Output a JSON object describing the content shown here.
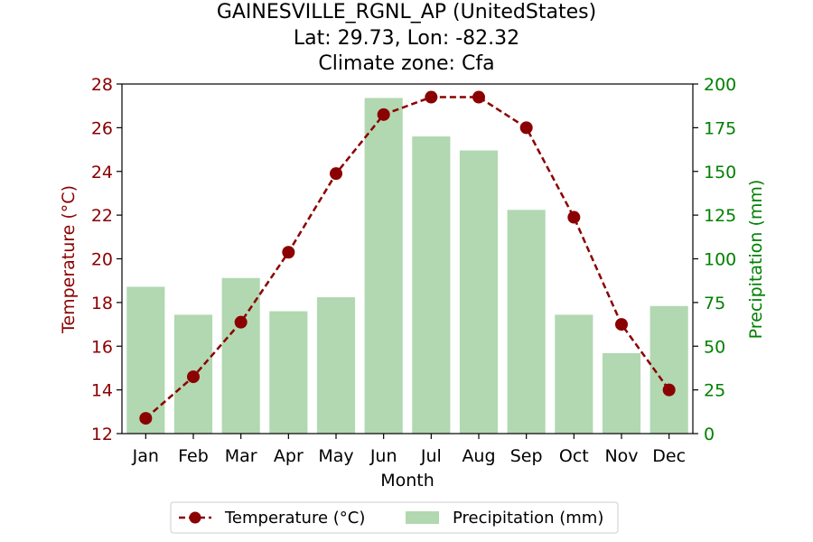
{
  "chart_data": {
    "type": "bar",
    "title_lines": [
      "GAINESVILLE_RGNL_AP (UnitedStates)",
      "Lat: 29.73, Lon: -82.32",
      "Climate zone: Cfa"
    ],
    "xlabel": "Month",
    "ylabel_left": "Temperature (°C)",
    "ylabel_right": "Precipitation (mm)",
    "categories": [
      "Jan",
      "Feb",
      "Mar",
      "Apr",
      "May",
      "Jun",
      "Jul",
      "Aug",
      "Sep",
      "Oct",
      "Nov",
      "Dec"
    ],
    "series": [
      {
        "name": "Temperature (°C)",
        "type": "line",
        "axis": "left",
        "values": [
          12.7,
          14.6,
          17.1,
          20.3,
          23.9,
          26.6,
          27.4,
          27.4,
          26.0,
          21.9,
          17.0,
          14.0
        ]
      },
      {
        "name": "Precipitation (mm)",
        "type": "bar",
        "axis": "right",
        "values": [
          84,
          68,
          89,
          70,
          78,
          192,
          170,
          162,
          128,
          68,
          46,
          73
        ]
      }
    ],
    "ylim_left": [
      12,
      28
    ],
    "yticks_left": [
      12,
      14,
      16,
      18,
      20,
      22,
      24,
      26,
      28
    ],
    "ylim_right": [
      0,
      200
    ],
    "yticks_right": [
      0,
      25,
      50,
      75,
      100,
      125,
      150,
      175,
      200
    ],
    "grid": false,
    "legend_position": "bottom-center",
    "colors": {
      "temperature": "#8b0000",
      "precipitation": "#b1d8b1",
      "right_axis": "#008000"
    }
  }
}
